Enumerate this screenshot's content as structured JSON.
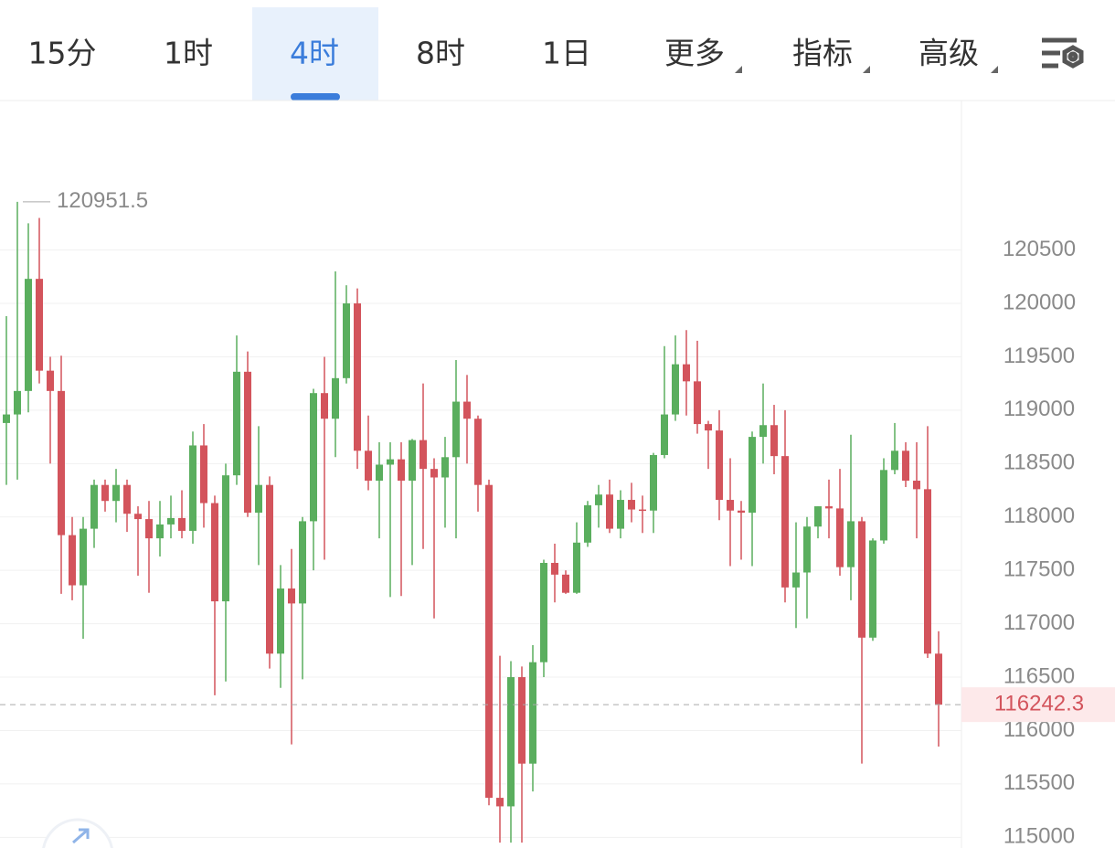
{
  "tabs": {
    "items": [
      "15分",
      "1时",
      "4时",
      "8时",
      "1日",
      "更多",
      "指标",
      "高级"
    ],
    "active": 2
  },
  "chart_data": {
    "type": "candlestick",
    "open": [
      118880,
      118960,
      119180,
      120230,
      119370,
      119180,
      117830,
      117360,
      117890,
      118300,
      118150,
      118300,
      118030,
      117980,
      117800,
      117930,
      117990,
      117870,
      118670,
      118130,
      117210,
      118390,
      119360,
      118040,
      118300,
      116720,
      117330,
      117190,
      117960,
      119160,
      118920,
      119300,
      120000,
      118620,
      118340,
      118490,
      118540,
      118340,
      118720,
      118450,
      118370,
      118560,
      119080,
      118920,
      118300,
      115370,
      115290,
      116500,
      115690,
      116640,
      117570,
      117460,
      117290,
      117760,
      118110,
      118210,
      117890,
      118160,
      118070,
      118060,
      118580,
      118960,
      119430,
      119270,
      118870,
      118810,
      118160,
      118060,
      118040,
      118750,
      118860,
      118570,
      117340,
      117480,
      117910,
      118100,
      118080,
      117530,
      117960,
      116870,
      117780,
      118440,
      118620,
      118340,
      118260,
      116720
    ],
    "high": [
      119880,
      120951.5,
      120750,
      120800,
      119500,
      119510,
      118000,
      118000,
      118350,
      118350,
      118450,
      118350,
      118100,
      118150,
      118150,
      118200,
      118250,
      118800,
      118870,
      118200,
      118500,
      119700,
      119550,
      118850,
      118380,
      117550,
      117700,
      118000,
      119200,
      119500,
      120300,
      120170,
      120140,
      118950,
      118700,
      118700,
      118700,
      118730,
      119250,
      118550,
      118750,
      119470,
      119330,
      118950,
      118350,
      116700,
      116650,
      116600,
      116800,
      117600,
      117750,
      117500,
      117950,
      118150,
      118300,
      118350,
      118250,
      118320,
      118200,
      118600,
      119600,
      119700,
      119750,
      119650,
      118900,
      119000,
      118550,
      118150,
      118800,
      119250,
      119050,
      119000,
      117950,
      118000,
      118100,
      118350,
      118450,
      118770,
      118000,
      117800,
      118550,
      118880,
      118700,
      118700,
      118850,
      116930
    ],
    "low": [
      118300,
      118350,
      118980,
      119250,
      118500,
      117280,
      117220,
      116860,
      117710,
      118050,
      117950,
      117860,
      117450,
      117290,
      117630,
      117800,
      117800,
      117750,
      117900,
      116330,
      116460,
      118300,
      118000,
      117550,
      116580,
      116400,
      115870,
      116480,
      117500,
      117600,
      118560,
      119250,
      118450,
      118250,
      117800,
      117250,
      117260,
      117550,
      117700,
      117050,
      117900,
      117800,
      118500,
      118050,
      115300,
      114950,
      114950,
      114950,
      115430,
      116500,
      117200,
      117280,
      117280,
      117720,
      117900,
      117850,
      117800,
      117950,
      117850,
      117850,
      118550,
      118900,
      118950,
      118780,
      118450,
      117970,
      117540,
      117600,
      117540,
      118500,
      118400,
      117200,
      116960,
      117050,
      117800,
      117800,
      117450,
      117220,
      115690,
      116840,
      117750,
      118400,
      118280,
      117800,
      116680,
      115850
    ],
    "close": [
      118960,
      119180,
      120230,
      119370,
      119180,
      117830,
      117360,
      117890,
      118300,
      118150,
      118300,
      118030,
      117980,
      117800,
      117930,
      117990,
      117870,
      118670,
      118130,
      117210,
      118390,
      119360,
      118040,
      118300,
      116720,
      117330,
      117190,
      117960,
      119160,
      118920,
      119300,
      120000,
      118620,
      118340,
      118490,
      118540,
      118340,
      118720,
      118450,
      118370,
      118560,
      119080,
      118920,
      118300,
      115370,
      115290,
      116500,
      115690,
      116640,
      117570,
      117460,
      117290,
      117760,
      118110,
      118210,
      117890,
      118160,
      118070,
      118060,
      118580,
      118960,
      119430,
      119270,
      118870,
      118810,
      118160,
      118060,
      118040,
      118750,
      118860,
      118570,
      117340,
      117480,
      117910,
      118100,
      118080,
      117530,
      117960,
      116870,
      117780,
      118440,
      118620,
      118340,
      118260,
      116720,
      116242.3
    ],
    "up_color": "#5aae5e",
    "down_color": "#d3545c",
    "ylim": [
      114900,
      121900
    ],
    "yticks": [
      115000,
      115500,
      116000,
      116500,
      117000,
      117500,
      118000,
      118500,
      119000,
      119500,
      120000,
      120500
    ],
    "grid": true,
    "last_price": 116242.3,
    "max_label": 120951.5
  }
}
